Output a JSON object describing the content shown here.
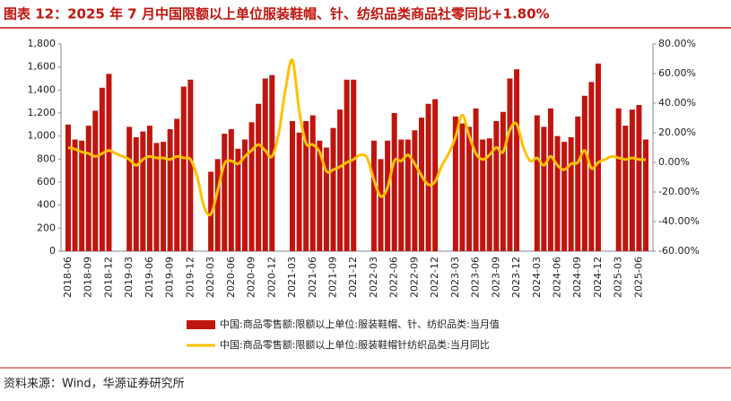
{
  "chart_data": {
    "type": "bar_line",
    "title": "图表 12：2025 年 7 月中国限额以上单位服装鞋帽、针、纺织品类商品社零同比+1.80%",
    "source": "资料来源：Wind，华源证券研究所",
    "categories": [
      "2018-06",
      null,
      null,
      "2018-09",
      null,
      null,
      "2018-12",
      null,
      null,
      "2019-03",
      null,
      null,
      "2019-06",
      null,
      null,
      "2019-09",
      null,
      null,
      "2019-12",
      null,
      null,
      "2020-03",
      null,
      null,
      "2020-06",
      null,
      null,
      "2020-09",
      null,
      null,
      "2020-12",
      null,
      null,
      "2021-03",
      null,
      null,
      "2021-06",
      null,
      null,
      "2021-09",
      null,
      null,
      "2021-12",
      null,
      null,
      "2022-03",
      null,
      null,
      "2022-06",
      null,
      null,
      "2022-09",
      null,
      null,
      "2022-12",
      null,
      null,
      "2023-03",
      null,
      null,
      "2023-06",
      null,
      null,
      "2023-09",
      null,
      null,
      "2023-12",
      null,
      null,
      "2024-03",
      null,
      null,
      "2024-06",
      null,
      null,
      "2024-09",
      null,
      null,
      "2024-12",
      null,
      null,
      "2025-03",
      null,
      null,
      "2025-06",
      null
    ],
    "series": [
      {
        "name": "中国:商品零售额:限额以上单位:服装鞋帽、针、纺织品类:当月值",
        "type": "bar",
        "color": "#c0150e",
        "values": [
          1100,
          970,
          960,
          1090,
          1220,
          1420,
          1540,
          null,
          null,
          1080,
          990,
          1040,
          1090,
          940,
          950,
          1060,
          1150,
          1430,
          1490,
          null,
          null,
          690,
          800,
          1020,
          1060,
          890,
          970,
          1120,
          1280,
          1500,
          1530,
          null,
          null,
          1130,
          1030,
          1130,
          1180,
          960,
          900,
          1070,
          1230,
          1490,
          1490,
          null,
          null,
          960,
          800,
          960,
          1200,
          970,
          970,
          1050,
          1160,
          1280,
          1320,
          null,
          null,
          1170,
          1110,
          1080,
          1240,
          970,
          980,
          1130,
          1210,
          1500,
          1580,
          null,
          null,
          1180,
          1080,
          1240,
          1000,
          950,
          990,
          1170,
          1350,
          1470,
          1630,
          null,
          null,
          1240,
          1090,
          1230,
          1270,
          970
        ]
      },
      {
        "name": "中国:商品零售额:限额以上单位:服装鞋帽针纺织品类:当月同比",
        "type": "line",
        "axis": "y2",
        "color": "#ffc000",
        "values": [
          10,
          9,
          7,
          6,
          4,
          6,
          8,
          6,
          4,
          2,
          -2,
          2,
          4,
          3,
          3,
          2,
          4,
          3,
          2,
          -10,
          -30,
          -35,
          -19,
          -1,
          1,
          -1,
          4,
          8,
          12,
          8,
          4,
          20,
          50,
          69,
          35,
          13,
          12,
          7,
          -6,
          -5,
          -3,
          0,
          2,
          5,
          3,
          -12,
          -23,
          -17,
          1,
          1,
          5,
          -1,
          -9,
          -15,
          -13,
          -2,
          6,
          17,
          32,
          18,
          6,
          2,
          5,
          10,
          7,
          22,
          26,
          10,
          1,
          3,
          -2,
          4,
          -2,
          -5,
          -1,
          0,
          8,
          -4,
          0,
          2,
          4,
          3,
          2,
          3,
          2,
          1.8
        ]
      }
    ],
    "ylim": [
      0,
      1800
    ],
    "yticks": [
      0,
      200,
      400,
      600,
      800,
      {
        "value": 1000,
        "label": "1,000"
      },
      {
        "value": 1200,
        "label": "1,200"
      },
      {
        "value": 1400,
        "label": "1,400"
      },
      {
        "value": 1600,
        "label": "1,600"
      },
      {
        "value": 1800,
        "label": "1,800"
      }
    ],
    "y2lim": [
      -60,
      80
    ],
    "y2ticks": [
      {
        "value": -60,
        "label": "-60.00%"
      },
      {
        "value": -40,
        "label": "-40.00%"
      },
      {
        "value": -20,
        "label": "-20.00%"
      },
      {
        "value": 0,
        "label": "0.00%"
      },
      {
        "value": 20,
        "label": "20.00%"
      },
      {
        "value": 40,
        "label": "40.00%"
      },
      {
        "value": 60,
        "label": "60.00%"
      },
      {
        "value": 80,
        "label": "80.00%"
      }
    ]
  }
}
